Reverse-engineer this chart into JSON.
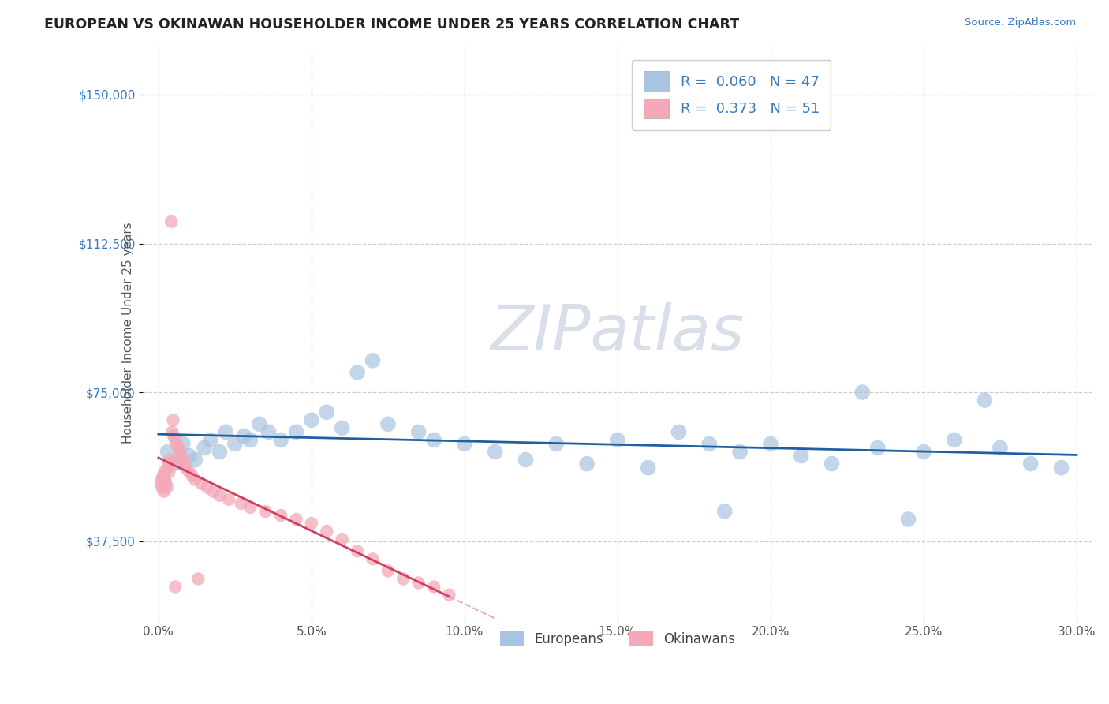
{
  "title": "EUROPEAN VS OKINAWAN HOUSEHOLDER INCOME UNDER 25 YEARS CORRELATION CHART",
  "source": "Source: ZipAtlas.com",
  "ylabel": "Householder Income Under 25 years",
  "xlabel_vals": [
    0.0,
    5.0,
    10.0,
    15.0,
    20.0,
    25.0,
    30.0
  ],
  "ylabel_vals": [
    37500,
    75000,
    112500,
    150000
  ],
  "ylabel_labels": [
    "$37,500",
    "$75,000",
    "$112,500",
    "$150,000"
  ],
  "xlim": [
    -0.5,
    30.5
  ],
  "ylim": [
    18000,
    162000
  ],
  "r_european": "0.060",
  "n_european": 47,
  "r_okinawan": "0.373",
  "n_okinawan": 51,
  "european_color": "#a8c4e0",
  "okinawan_color": "#f4a8b8",
  "european_line_color": "#2060a0",
  "okinawan_line_color": "#d04060",
  "okinawan_ext_color": "#e8a8b8",
  "background_color": "#ffffff",
  "grid_color": "#c8c8c8",
  "title_color": "#222222",
  "source_color": "#3a7abf",
  "legend_color": "#3a7abf",
  "watermark_color": "#d8dfe8",
  "marker_size": 200,
  "europeans_x": [
    0.3,
    0.5,
    0.8,
    1.0,
    1.2,
    1.5,
    1.7,
    2.0,
    2.2,
    2.5,
    2.8,
    3.0,
    3.3,
    3.6,
    4.0,
    4.5,
    5.0,
    5.5,
    6.0,
    6.5,
    7.0,
    7.5,
    8.5,
    9.0,
    10.0,
    11.0,
    12.0,
    13.0,
    14.0,
    15.0,
    16.0,
    17.0,
    18.0,
    18.5,
    19.0,
    20.0,
    21.0,
    22.0,
    23.0,
    23.5,
    24.5,
    25.0,
    26.0,
    27.0,
    27.5,
    28.5,
    29.5
  ],
  "europeans_y": [
    60000,
    57000,
    62000,
    59000,
    58000,
    61000,
    63000,
    60000,
    65000,
    62000,
    64000,
    63000,
    67000,
    65000,
    63000,
    65000,
    68000,
    70000,
    66000,
    80000,
    83000,
    67000,
    65000,
    63000,
    62000,
    60000,
    58000,
    62000,
    57000,
    63000,
    56000,
    65000,
    62000,
    45000,
    60000,
    62000,
    59000,
    57000,
    75000,
    61000,
    43000,
    60000,
    63000,
    73000,
    61000,
    57000,
    56000
  ],
  "okinawans_x": [
    0.08,
    0.1,
    0.12,
    0.15,
    0.18,
    0.2,
    0.22,
    0.25,
    0.28,
    0.3,
    0.33,
    0.35,
    0.38,
    0.4,
    0.42,
    0.45,
    0.48,
    0.5,
    0.55,
    0.6,
    0.65,
    0.7,
    0.75,
    0.8,
    0.85,
    0.9,
    1.0,
    1.1,
    1.2,
    1.4,
    1.6,
    1.8,
    2.0,
    2.3,
    2.7,
    3.0,
    3.5,
    4.0,
    4.5,
    5.0,
    5.5,
    6.0,
    6.5,
    7.0,
    7.5,
    8.0,
    8.5,
    9.0,
    9.5,
    1.3,
    0.55
  ],
  "okinawans_y": [
    52000,
    53000,
    51000,
    54000,
    50000,
    55000,
    53000,
    52000,
    51000,
    56000,
    57000,
    55000,
    58000,
    57000,
    118000,
    65000,
    68000,
    64000,
    63000,
    62000,
    61000,
    60000,
    59000,
    58000,
    57000,
    56000,
    55000,
    54000,
    53000,
    52000,
    51000,
    50000,
    49000,
    48000,
    47000,
    46000,
    45000,
    44000,
    43000,
    42000,
    40000,
    38000,
    35000,
    33000,
    30000,
    28000,
    27000,
    26000,
    24000,
    28000,
    26000
  ]
}
